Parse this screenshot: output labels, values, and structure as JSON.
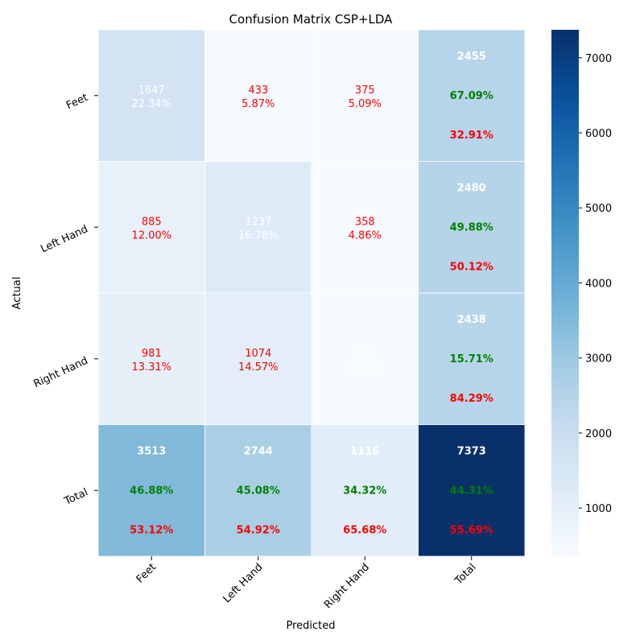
{
  "chart_data": {
    "type": "heatmap",
    "title": "Confusion Matrix CSP+LDA",
    "xlabel": "Predicted",
    "ylabel": "Actual",
    "x_categories": [
      "Feet",
      "Left Hand",
      "Right Hand",
      "Total"
    ],
    "y_categories": [
      "Feet",
      "Left Hand",
      "Right Hand",
      "Total"
    ],
    "colormap": "Blues",
    "vmin": 358,
    "vmax": 7373,
    "colorbar_ticks": [
      "1000",
      "2000",
      "3000",
      "4000",
      "5000",
      "6000",
      "7000"
    ],
    "cells": [
      [
        {
          "value": 1647,
          "count": "1647",
          "pct": "22.34%",
          "color": "#ffffff"
        },
        {
          "value": 433,
          "count": "433",
          "pct": "5.87%",
          "color": "#ff0000"
        },
        {
          "value": 375,
          "count": "375",
          "pct": "5.09%",
          "color": "#ff0000"
        }
      ],
      [
        {
          "value": 885,
          "count": "885",
          "pct": "12.00%",
          "color": "#ff0000"
        },
        {
          "value": 1237,
          "count": "1237",
          "pct": "16.78%",
          "color": "#ffffff"
        },
        {
          "value": 358,
          "count": "358",
          "pct": "4.86%",
          "color": "#ff0000"
        }
      ],
      [
        {
          "value": 981,
          "count": "981",
          "pct": "13.31%",
          "color": "#ff0000"
        },
        {
          "value": 1074,
          "count": "1074",
          "pct": "14.57%",
          "color": "#ff0000"
        },
        {
          "value": 383,
          "count": "383",
          "pct": "5.19%",
          "color": "#ffffff"
        }
      ]
    ],
    "row_totals": [
      {
        "value": 2455,
        "total": "2455",
        "correct": "67.09%",
        "wrong": "32.91%"
      },
      {
        "value": 2480,
        "total": "2480",
        "correct": "49.88%",
        "wrong": "50.12%"
      },
      {
        "value": 2438,
        "total": "2438",
        "correct": "15.71%",
        "wrong": "84.29%"
      }
    ],
    "col_totals": [
      {
        "value": 3513,
        "total": "3513",
        "correct": "46.88%",
        "wrong": "53.12%"
      },
      {
        "value": 2744,
        "total": "2744",
        "correct": "45.08%",
        "wrong": "54.92%"
      },
      {
        "value": 1116,
        "total": "1116",
        "correct": "34.32%",
        "wrong": "65.68%"
      }
    ],
    "grand_total": {
      "value": 7373,
      "total": "7373",
      "correct": "44.31%",
      "wrong": "55.69%"
    },
    "colors": {
      "correct": "#008000",
      "wrong": "#ff0000",
      "light": "#ffffff"
    }
  }
}
